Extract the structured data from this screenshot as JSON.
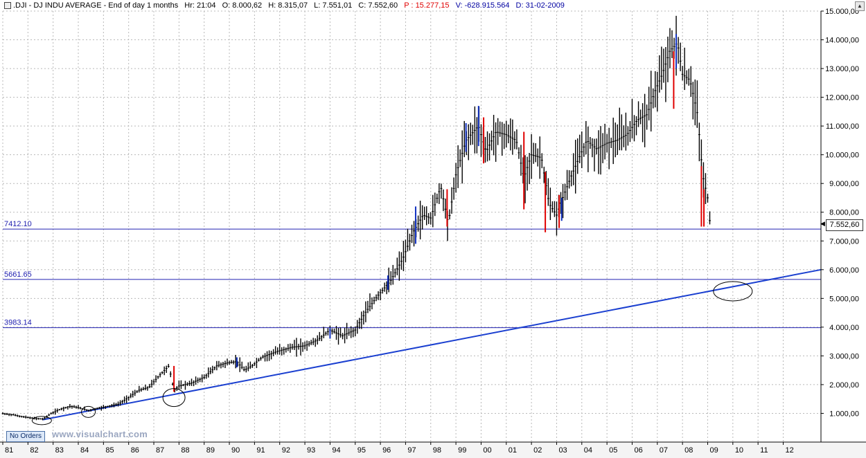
{
  "header": {
    "symbol": ".DJI - DJ INDU AVERAGE - End of day 1 months",
    "hr_label": "Hr:",
    "hr": "21:04",
    "o_label": "O:",
    "o": "8.000,62",
    "h_label": "H:",
    "h": "8.315,07",
    "l_label": "L:",
    "l": "7.551,01",
    "c_label": "C:",
    "c": "7.552,60",
    "p_label": "P :",
    "p": "15.277,15",
    "v_label": "V:",
    "v": "-628.915.564",
    "d_label": "D:",
    "d": "31-02-2009"
  },
  "buttons": {
    "no_orders": "No Orders"
  },
  "watermark": "www.visualchart.com",
  "last_price_tag": "7.552,60",
  "colors": {
    "bars": "#000000",
    "up_highlight": "#1030c0",
    "down_highlight": "#e00000",
    "hline": "#2020b0",
    "trendline": "#1a3fd0",
    "grid": "#b8b8b8"
  },
  "chart_data": {
    "type": "line",
    "x_unit": "year",
    "xlim": [
      1981,
      2013.5
    ],
    "ylim": [
      0,
      15000
    ],
    "yscale": "linear",
    "grid": "on",
    "xtick_labels": [
      "81",
      "82",
      "83",
      "84",
      "85",
      "86",
      "87",
      "88",
      "89",
      "90",
      "91",
      "92",
      "93",
      "94",
      "95",
      "96",
      "97",
      "98",
      "99",
      "00",
      "01",
      "02",
      "03",
      "04",
      "05",
      "06",
      "07",
      "08",
      "09",
      "10",
      "11",
      "12"
    ],
    "ytick_values": [
      1000,
      2000,
      3000,
      4000,
      5000,
      6000,
      7000,
      8000,
      9000,
      10000,
      11000,
      12000,
      13000,
      14000,
      15000
    ],
    "ytick_labels": [
      "1.000,00",
      "2.000,00",
      "3.000,00",
      "4.000,00",
      "5.000,00",
      "6.000,00",
      "7.000,00",
      "8.000,00",
      "9.000,00",
      "10.000,00",
      "11.000,00",
      "12.000,00",
      "13.000,00",
      "14.000,00",
      "15.000,00"
    ],
    "horizontal_lines": [
      {
        "label": "7412.10",
        "value": 7412.1
      },
      {
        "label": "5661.65",
        "value": 5661.65
      },
      {
        "label": "3983.14",
        "value": 3983.14
      }
    ],
    "trendline": {
      "from": [
        1982.6,
        780
      ],
      "to": [
        2013.5,
        6000
      ]
    },
    "ellipses": [
      {
        "x": 1982.55,
        "y": 750
      },
      {
        "x": 1984.4,
        "y": 1050
      },
      {
        "x": 1987.8,
        "y": 1550
      },
      {
        "x": 2010.0,
        "y": 5250
      }
    ],
    "series": [
      {
        "points": [
          [
            1981.0,
            990
          ],
          [
            1981.4,
            950
          ],
          [
            1981.8,
            880
          ],
          [
            1982.2,
            830
          ],
          [
            1982.6,
            800
          ],
          [
            1982.9,
            980
          ],
          [
            1983.3,
            1150
          ],
          [
            1983.7,
            1250
          ],
          [
            1984.0,
            1200
          ],
          [
            1984.4,
            1100
          ],
          [
            1984.8,
            1180
          ],
          [
            1985.2,
            1250
          ],
          [
            1985.6,
            1320
          ],
          [
            1986.0,
            1550
          ],
          [
            1986.4,
            1800
          ],
          [
            1986.8,
            1900
          ],
          [
            1987.2,
            2300
          ],
          [
            1987.6,
            2650
          ],
          [
            1987.8,
            1800
          ],
          [
            1988.0,
            1950
          ],
          [
            1988.5,
            2050
          ],
          [
            1989.0,
            2250
          ],
          [
            1989.5,
            2650
          ],
          [
            1989.9,
            2750
          ],
          [
            1990.3,
            2800
          ],
          [
            1990.6,
            2500
          ],
          [
            1990.9,
            2650
          ],
          [
            1991.3,
            2950
          ],
          [
            1991.9,
            3150
          ],
          [
            1992.5,
            3300
          ],
          [
            1993.0,
            3350
          ],
          [
            1993.5,
            3550
          ],
          [
            1994.0,
            3900
          ],
          [
            1994.5,
            3700
          ],
          [
            1995.0,
            3900
          ],
          [
            1995.4,
            4500
          ],
          [
            1995.9,
            5100
          ],
          [
            1996.4,
            5600
          ],
          [
            1996.9,
            6400
          ],
          [
            1997.3,
            7300
          ],
          [
            1997.7,
            7900
          ],
          [
            1998.0,
            7800
          ],
          [
            1998.4,
            8900
          ],
          [
            1998.7,
            7600
          ],
          [
            1999.0,
            9300
          ],
          [
            1999.4,
            10500
          ],
          [
            1999.9,
            11000
          ],
          [
            2000.2,
            10100
          ],
          [
            2000.6,
            10800
          ],
          [
            2001.0,
            10700
          ],
          [
            2001.4,
            10500
          ],
          [
            2001.7,
            9200
          ],
          [
            2002.0,
            10000
          ],
          [
            2002.4,
            9900
          ],
          [
            2002.7,
            8300
          ],
          [
            2003.0,
            7900
          ],
          [
            2003.2,
            8400
          ],
          [
            2003.6,
            9300
          ],
          [
            2003.9,
            9900
          ],
          [
            2004.2,
            10500
          ],
          [
            2004.6,
            10200
          ],
          [
            2005.0,
            10400
          ],
          [
            2005.4,
            10500
          ],
          [
            2005.8,
            10700
          ],
          [
            2006.2,
            11200
          ],
          [
            2006.6,
            11400
          ],
          [
            2006.9,
            12200
          ],
          [
            2007.2,
            12800
          ],
          [
            2007.5,
            13600
          ],
          [
            2007.8,
            13900
          ],
          [
            2008.0,
            12800
          ],
          [
            2008.3,
            12600
          ],
          [
            2008.6,
            11400
          ],
          [
            2008.8,
            9300
          ],
          [
            2009.0,
            8500
          ],
          [
            2009.1,
            7550
          ]
        ]
      }
    ],
    "red_bars": [
      {
        "x": 1987.8,
        "low": 1750,
        "high": 2650
      },
      {
        "x": 1998.65,
        "low": 7500,
        "high": 8800
      },
      {
        "x": 2000.1,
        "low": 9700,
        "high": 11300
      },
      {
        "x": 2001.7,
        "low": 8100,
        "high": 10800
      },
      {
        "x": 2002.55,
        "low": 7300,
        "high": 9400
      },
      {
        "x": 2003.1,
        "low": 7450,
        "high": 8600
      },
      {
        "x": 2007.65,
        "low": 11600,
        "high": 13600
      },
      {
        "x": 2008.75,
        "low": 7500,
        "high": 9600
      },
      {
        "x": 2008.85,
        "low": 7500,
        "high": 8800
      }
    ],
    "blue_bars": [
      {
        "x": 1990.3,
        "low": 2600,
        "high": 2950
      },
      {
        "x": 1994.0,
        "low": 3600,
        "high": 3980
      },
      {
        "x": 1996.3,
        "low": 5300,
        "high": 5800
      },
      {
        "x": 1997.4,
        "low": 6900,
        "high": 8200
      },
      {
        "x": 1999.4,
        "low": 10100,
        "high": 11100
      },
      {
        "x": 1999.9,
        "low": 10300,
        "high": 11700
      },
      {
        "x": 2003.2,
        "low": 7700,
        "high": 8500
      },
      {
        "x": 2007.75,
        "low": 13000,
        "high": 14200
      }
    ]
  }
}
